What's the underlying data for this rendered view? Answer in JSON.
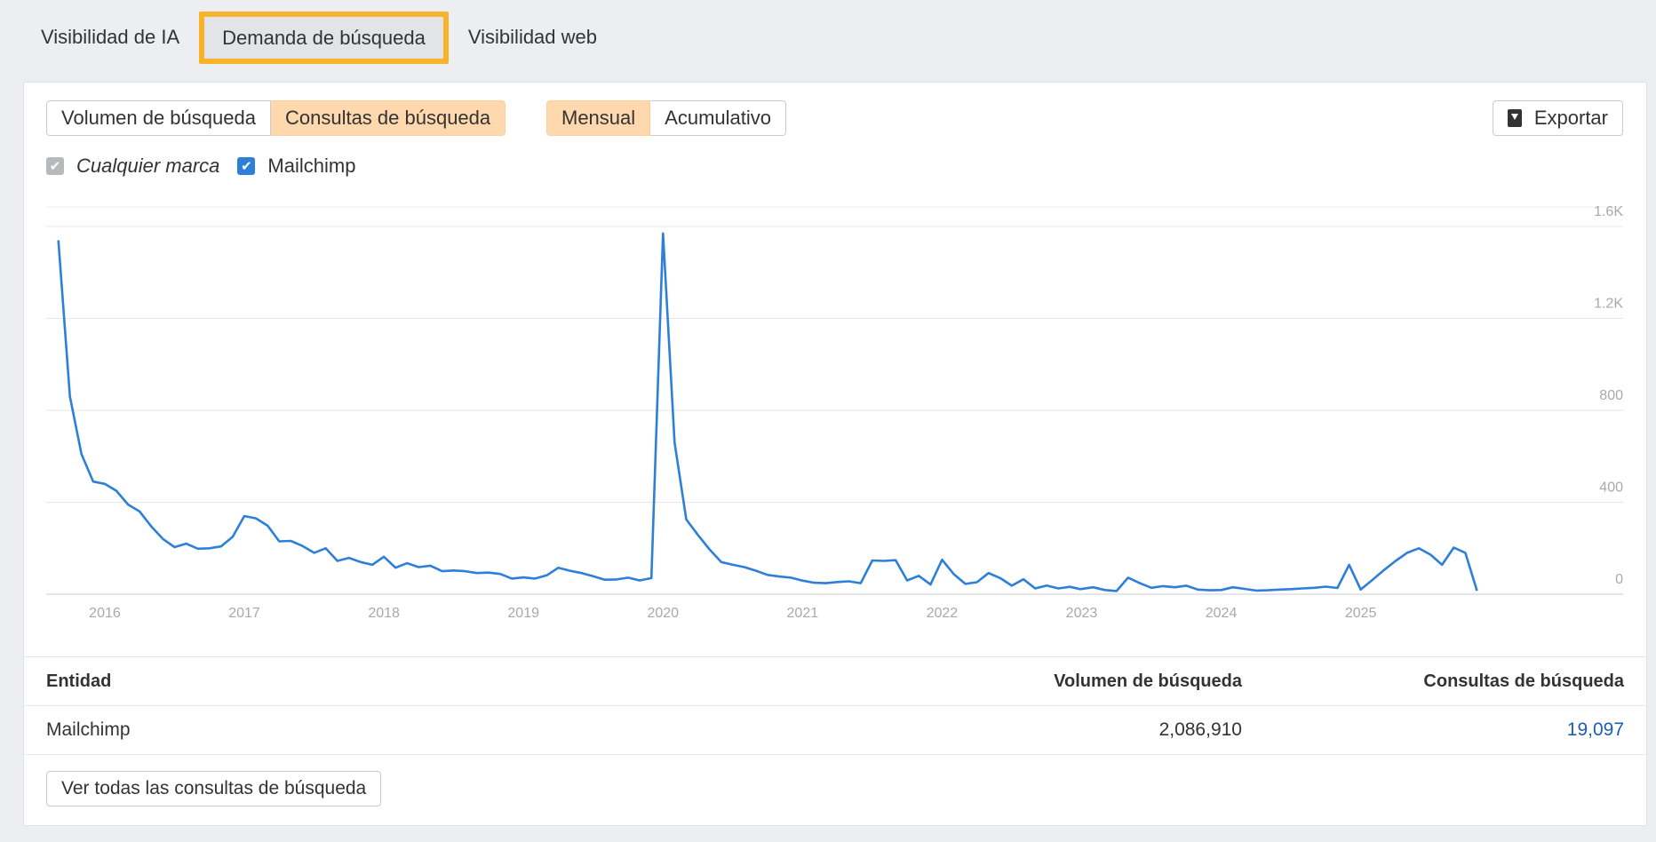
{
  "tabs": [
    {
      "label": "Visibilidad de IA"
    },
    {
      "label": "Demanda de búsqueda"
    },
    {
      "label": "Visibilidad web"
    }
  ],
  "metric_toggle": {
    "volume": "Volumen de búsqueda",
    "queries": "Consultas de búsqueda",
    "selected": "queries"
  },
  "period_toggle": {
    "monthly": "Mensual",
    "cumulative": "Acumulativo",
    "selected": "monthly"
  },
  "export_label": "Exportar",
  "legend": [
    {
      "label": "Cualquier marca",
      "checked": true,
      "color": "#b7b9bd"
    },
    {
      "label": "Mailchimp",
      "checked": true,
      "color": "#2d7fd8"
    }
  ],
  "chart_data": {
    "type": "line",
    "title": "",
    "xlabel": "",
    "ylabel": "",
    "x_tick_labels": [
      "2016",
      "2017",
      "2018",
      "2019",
      "2020",
      "2021",
      "2022",
      "2023",
      "2024",
      "2025"
    ],
    "y_tick_labels": [
      "0",
      "400",
      "800",
      "1.2K",
      "1.6K"
    ],
    "ylim": [
      0,
      1600
    ],
    "xlim": [
      2015.58,
      2025.83
    ],
    "y_axis_side": "right",
    "grid": true,
    "series": [
      {
        "name": "Mailchimp",
        "color": "#2d7fd8",
        "points": [
          [
            2015.667,
            1540
          ],
          [
            2015.75,
            860
          ],
          [
            2015.833,
            610
          ],
          [
            2015.917,
            490
          ],
          [
            2016.0,
            480
          ],
          [
            2016.083,
            450
          ],
          [
            2016.167,
            390
          ],
          [
            2016.25,
            360
          ],
          [
            2016.333,
            295
          ],
          [
            2016.417,
            240
          ],
          [
            2016.5,
            205
          ],
          [
            2016.583,
            220
          ],
          [
            2016.667,
            198
          ],
          [
            2016.75,
            200
          ],
          [
            2016.833,
            208
          ],
          [
            2016.917,
            250
          ],
          [
            2017.0,
            340
          ],
          [
            2017.083,
            330
          ],
          [
            2017.167,
            298
          ],
          [
            2017.25,
            230
          ],
          [
            2017.333,
            232
          ],
          [
            2017.417,
            210
          ],
          [
            2017.5,
            180
          ],
          [
            2017.583,
            200
          ],
          [
            2017.667,
            145
          ],
          [
            2017.75,
            158
          ],
          [
            2017.833,
            140
          ],
          [
            2017.917,
            128
          ],
          [
            2018.0,
            163
          ],
          [
            2018.083,
            115
          ],
          [
            2018.167,
            135
          ],
          [
            2018.25,
            118
          ],
          [
            2018.333,
            124
          ],
          [
            2018.417,
            100
          ],
          [
            2018.5,
            103
          ],
          [
            2018.583,
            100
          ],
          [
            2018.667,
            92
          ],
          [
            2018.75,
            94
          ],
          [
            2018.833,
            88
          ],
          [
            2018.917,
            68
          ],
          [
            2019.0,
            73
          ],
          [
            2019.083,
            68
          ],
          [
            2019.167,
            82
          ],
          [
            2019.25,
            115
          ],
          [
            2019.333,
            102
          ],
          [
            2019.417,
            92
          ],
          [
            2019.5,
            78
          ],
          [
            2019.583,
            63
          ],
          [
            2019.667,
            64
          ],
          [
            2019.75,
            72
          ],
          [
            2019.833,
            60
          ],
          [
            2019.917,
            70
          ],
          [
            2020.0,
            1570
          ],
          [
            2020.083,
            660
          ],
          [
            2020.167,
            325
          ],
          [
            2020.25,
            258
          ],
          [
            2020.333,
            195
          ],
          [
            2020.417,
            140
          ],
          [
            2020.5,
            128
          ],
          [
            2020.583,
            118
          ],
          [
            2020.667,
            102
          ],
          [
            2020.75,
            84
          ],
          [
            2020.833,
            77
          ],
          [
            2020.917,
            72
          ],
          [
            2021.0,
            59
          ],
          [
            2021.083,
            50
          ],
          [
            2021.167,
            48
          ],
          [
            2021.25,
            53
          ],
          [
            2021.333,
            56
          ],
          [
            2021.417,
            48
          ],
          [
            2021.5,
            147
          ],
          [
            2021.583,
            145
          ],
          [
            2021.667,
            148
          ],
          [
            2021.75,
            60
          ],
          [
            2021.833,
            80
          ],
          [
            2021.917,
            42
          ],
          [
            2022.0,
            150
          ],
          [
            2022.083,
            88
          ],
          [
            2022.167,
            45
          ],
          [
            2022.25,
            52
          ],
          [
            2022.333,
            92
          ],
          [
            2022.417,
            70
          ],
          [
            2022.5,
            37
          ],
          [
            2022.583,
            65
          ],
          [
            2022.667,
            25
          ],
          [
            2022.75,
            38
          ],
          [
            2022.833,
            25
          ],
          [
            2022.917,
            32
          ],
          [
            2022.99,
            22
          ],
          [
            2023.083,
            30
          ],
          [
            2023.167,
            18
          ],
          [
            2023.25,
            14
          ],
          [
            2023.333,
            72
          ],
          [
            2023.417,
            48
          ],
          [
            2023.5,
            28
          ],
          [
            2023.583,
            35
          ],
          [
            2023.667,
            30
          ],
          [
            2023.75,
            37
          ],
          [
            2023.833,
            20
          ],
          [
            2023.917,
            17
          ],
          [
            2024.0,
            18
          ],
          [
            2024.083,
            30
          ],
          [
            2024.167,
            23
          ],
          [
            2024.25,
            16
          ],
          [
            2024.333,
            17
          ],
          [
            2024.417,
            20
          ],
          [
            2024.5,
            22
          ],
          [
            2024.583,
            25
          ],
          [
            2024.667,
            28
          ],
          [
            2024.75,
            33
          ],
          [
            2024.833,
            27
          ],
          [
            2024.917,
            128
          ],
          [
            2025.0,
            20
          ],
          [
            2025.083,
            62
          ],
          [
            2025.167,
            105
          ],
          [
            2025.25,
            145
          ],
          [
            2025.333,
            180
          ],
          [
            2025.417,
            200
          ],
          [
            2025.5,
            172
          ],
          [
            2025.583,
            128
          ],
          [
            2025.667,
            203
          ],
          [
            2025.75,
            180
          ],
          [
            2025.833,
            15
          ]
        ]
      }
    ]
  },
  "table": {
    "headers": {
      "entity": "Entidad",
      "volume": "Volumen de búsqueda",
      "queries": "Consultas de búsqueda"
    },
    "rows": [
      {
        "entity": "Mailchimp",
        "volume": "2,086,910",
        "queries": "19,097"
      }
    ]
  },
  "view_all_label": "Ver todas las consultas de búsqueda"
}
